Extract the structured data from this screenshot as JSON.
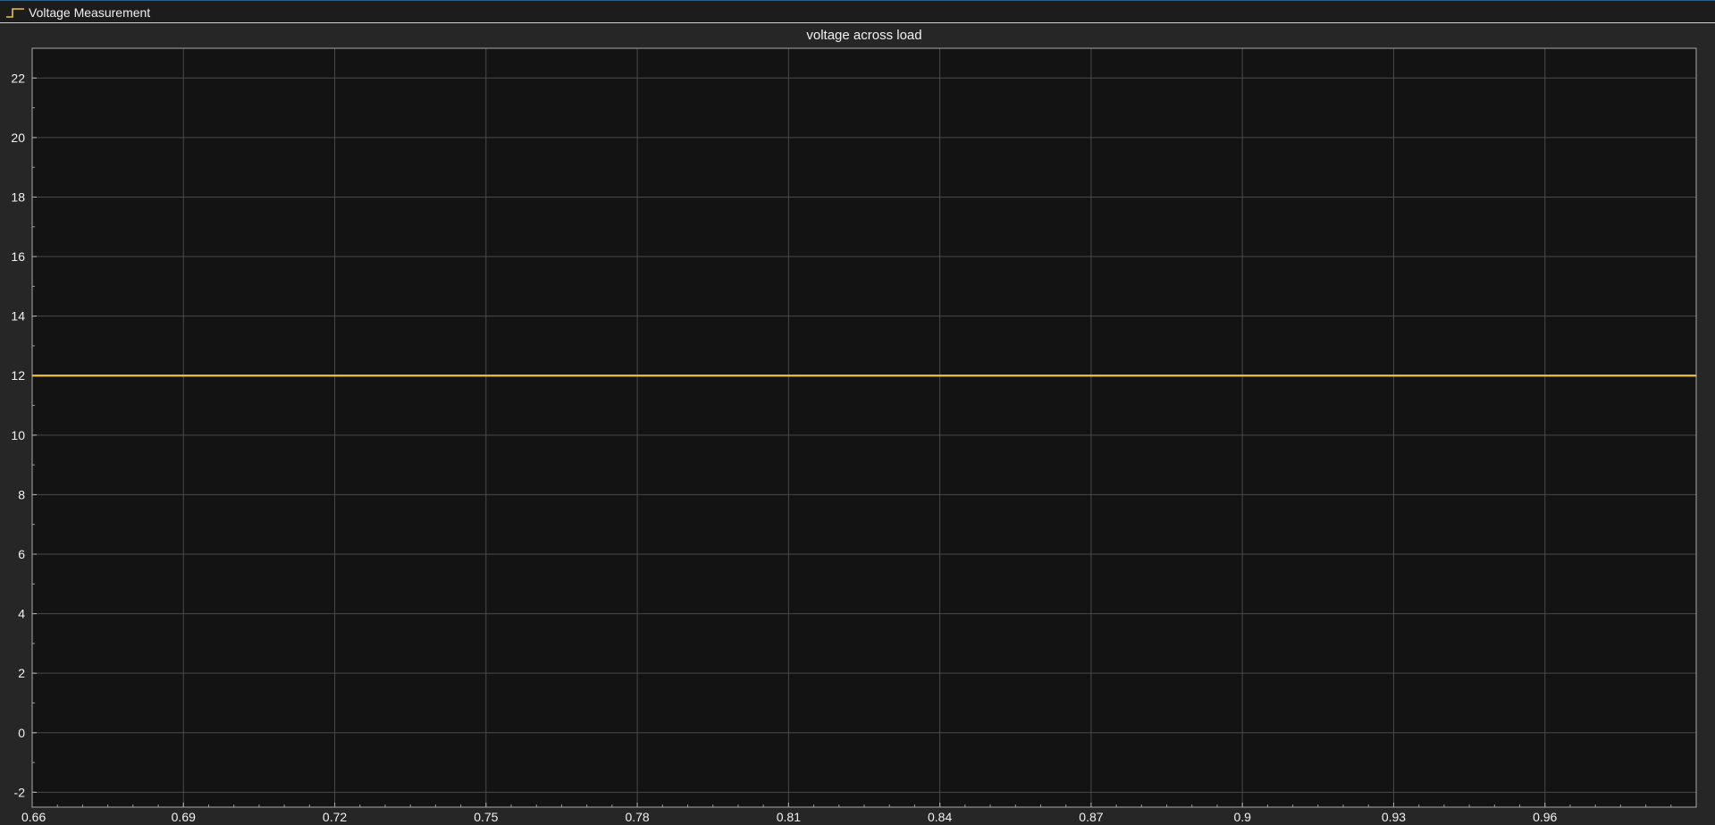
{
  "legend": {
    "label": "Voltage Measurement",
    "icon": "step-line-icon"
  },
  "colors": {
    "background": "#262626",
    "axes_background": "#131313",
    "grid": "#4a4a4a",
    "series": "#edc23e",
    "text": "#f2f2f2"
  },
  "chart_data": {
    "type": "line",
    "title": "voltage across load",
    "xlabel": "",
    "ylabel": "",
    "xlim": [
      0.66,
      0.99
    ],
    "ylim": [
      -2.5,
      23.0
    ],
    "xticks": [
      0.66,
      0.69,
      0.72,
      0.75,
      0.78,
      0.81,
      0.84,
      0.87,
      0.9,
      0.93,
      0.96
    ],
    "xtick_labels": [
      "0.66",
      "0.69",
      "0.72",
      "0.75",
      "0.78",
      "0.81",
      "0.84",
      "0.87",
      "0.9",
      "0.93",
      "0.96"
    ],
    "yticks": [
      -2,
      0,
      2,
      4,
      6,
      8,
      10,
      12,
      14,
      16,
      18,
      20,
      22
    ],
    "ytick_labels": [
      "-2",
      "0",
      "2",
      "4",
      "6",
      "8",
      "10",
      "12",
      "14",
      "16",
      "18",
      "20",
      "22"
    ],
    "grid": true,
    "legend_position": "top-left",
    "series": [
      {
        "name": "Voltage Measurement",
        "x": [
          0.66,
          0.99
        ],
        "y": [
          12,
          12
        ]
      }
    ]
  }
}
